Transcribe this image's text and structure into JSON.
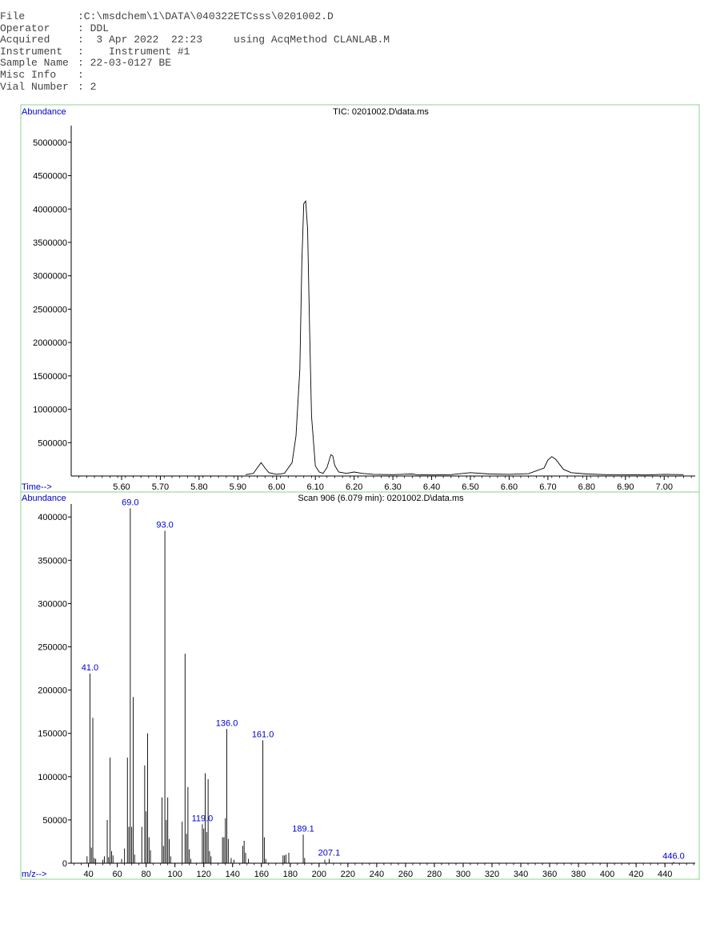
{
  "header": {
    "rows": [
      {
        "key": "File",
        "value": ":C:\\msdchem\\1\\DATA\\040322ETCsss\\0201002.D"
      },
      {
        "key": "Operator",
        "value": ": DDL"
      },
      {
        "key": "Acquired",
        "value": ":  3 Apr 2022  22:23     using AcqMethod CLANLAB.M"
      },
      {
        "key": "Instrument",
        "value": ":    Instrument #1"
      },
      {
        "key": "Sample Name",
        "value": ": 22-03-0127 BE"
      },
      {
        "key": "Misc Info",
        "value": ":"
      },
      {
        "key": "Vial Number",
        "value": ": 2"
      }
    ]
  },
  "colors": {
    "frame": "#8fd18f",
    "labels": "#0000cc",
    "trace": "#000000",
    "spectrum": "#000000"
  },
  "chart_data": [
    {
      "type": "line",
      "title": "TIC: 0201002.D\\data.ms",
      "ylabel": "Abundance",
      "xlabel": "Time-->",
      "xlim": [
        5.47,
        7.08
      ],
      "ylim": [
        0,
        5250000
      ],
      "xticks": [
        "5.60",
        "5.70",
        "5.80",
        "5.90",
        "6.00",
        "6.10",
        "6.20",
        "6.30",
        "6.40",
        "6.50",
        "6.60",
        "6.70",
        "6.80",
        "6.90",
        "7.00"
      ],
      "yticks": [
        "500000",
        "1000000",
        "1500000",
        "2000000",
        "2500000",
        "3000000",
        "3500000",
        "4000000",
        "4500000",
        "5000000"
      ],
      "x": [
        5.92,
        5.94,
        5.95,
        5.96,
        5.97,
        5.98,
        6.0,
        6.02,
        6.04,
        6.05,
        6.06,
        6.065,
        6.07,
        6.075,
        6.08,
        6.085,
        6.09,
        6.1,
        6.11,
        6.12,
        6.13,
        6.14,
        6.145,
        6.15,
        6.16,
        6.18,
        6.2,
        6.22,
        6.25,
        6.3,
        6.35,
        6.36,
        6.4,
        6.45,
        6.5,
        6.55,
        6.6,
        6.65,
        6.69,
        6.7,
        6.71,
        6.72,
        6.74,
        6.76,
        6.8,
        6.85,
        6.9,
        6.95,
        7.0,
        7.05
      ],
      "y": [
        20000,
        40000,
        120000,
        200000,
        120000,
        50000,
        25000,
        40000,
        200000,
        600000,
        1600000,
        3200000,
        4080000,
        4120000,
        3700000,
        2200000,
        900000,
        150000,
        60000,
        40000,
        130000,
        320000,
        300000,
        160000,
        60000,
        40000,
        60000,
        40000,
        25000,
        20000,
        30000,
        20000,
        15000,
        20000,
        50000,
        30000,
        25000,
        35000,
        120000,
        240000,
        290000,
        250000,
        100000,
        50000,
        30000,
        20000,
        20000,
        15000,
        25000,
        20000
      ]
    },
    {
      "type": "bar",
      "title": "Scan 906 (6.079 min): 0201002.D\\data.ms",
      "ylabel": "Abundance",
      "xlabel": "m/z-->",
      "xlim": [
        28,
        461
      ],
      "ylim": [
        0,
        415000
      ],
      "xticks": [
        "40",
        "60",
        "80",
        "100",
        "120",
        "140",
        "160",
        "180",
        "200",
        "220",
        "240",
        "260",
        "280",
        "300",
        "320",
        "340",
        "360",
        "380",
        "400",
        "420",
        "440"
      ],
      "yticks": [
        "0",
        "50000",
        "100000",
        "150000",
        "200000",
        "250000",
        "300000",
        "350000",
        "400000"
      ],
      "peaks": [
        {
          "mz": 39,
          "a": 8000
        },
        {
          "mz": 41,
          "a": 219000
        },
        {
          "mz": 42,
          "a": 18000
        },
        {
          "mz": 43,
          "a": 168000
        },
        {
          "mz": 44,
          "a": 6000
        },
        {
          "mz": 45,
          "a": 5000
        },
        {
          "mz": 50,
          "a": 4000
        },
        {
          "mz": 51,
          "a": 8000
        },
        {
          "mz": 53,
          "a": 50000
        },
        {
          "mz": 54,
          "a": 7000
        },
        {
          "mz": 55,
          "a": 122000
        },
        {
          "mz": 56,
          "a": 14000
        },
        {
          "mz": 57,
          "a": 9000
        },
        {
          "mz": 63,
          "a": 5000
        },
        {
          "mz": 65,
          "a": 17000
        },
        {
          "mz": 67,
          "a": 122000
        },
        {
          "mz": 68,
          "a": 42000
        },
        {
          "mz": 69,
          "a": 410000
        },
        {
          "mz": 70,
          "a": 42000
        },
        {
          "mz": 71,
          "a": 192000
        },
        {
          "mz": 72,
          "a": 10000
        },
        {
          "mz": 77,
          "a": 42000
        },
        {
          "mz": 79,
          "a": 113000
        },
        {
          "mz": 80,
          "a": 60000
        },
        {
          "mz": 81,
          "a": 150000
        },
        {
          "mz": 82,
          "a": 30000
        },
        {
          "mz": 83,
          "a": 15000
        },
        {
          "mz": 91,
          "a": 76000
        },
        {
          "mz": 92,
          "a": 20000
        },
        {
          "mz": 93,
          "a": 384000
        },
        {
          "mz": 94,
          "a": 50000
        },
        {
          "mz": 95,
          "a": 76000
        },
        {
          "mz": 96,
          "a": 28000
        },
        {
          "mz": 97,
          "a": 8000
        },
        {
          "mz": 105,
          "a": 48000
        },
        {
          "mz": 107,
          "a": 242000
        },
        {
          "mz": 108,
          "a": 34000
        },
        {
          "mz": 109,
          "a": 88000
        },
        {
          "mz": 110,
          "a": 16000
        },
        {
          "mz": 111,
          "a": 5000
        },
        {
          "mz": 119,
          "a": 45000
        },
        {
          "mz": 120,
          "a": 40000
        },
        {
          "mz": 121,
          "a": 104000
        },
        {
          "mz": 122,
          "a": 36000
        },
        {
          "mz": 123,
          "a": 97000
        },
        {
          "mz": 124,
          "a": 14000
        },
        {
          "mz": 125,
          "a": 8000
        },
        {
          "mz": 133,
          "a": 30000
        },
        {
          "mz": 134,
          "a": 30000
        },
        {
          "mz": 135,
          "a": 52000
        },
        {
          "mz": 136,
          "a": 155000
        },
        {
          "mz": 137,
          "a": 28000
        },
        {
          "mz": 139,
          "a": 6000
        },
        {
          "mz": 141,
          "a": 4000
        },
        {
          "mz": 147,
          "a": 20000
        },
        {
          "mz": 148,
          "a": 26000
        },
        {
          "mz": 149,
          "a": 12000
        },
        {
          "mz": 151,
          "a": 5000
        },
        {
          "mz": 161,
          "a": 142000
        },
        {
          "mz": 162,
          "a": 30000
        },
        {
          "mz": 163,
          "a": 5000
        },
        {
          "mz": 175,
          "a": 9000
        },
        {
          "mz": 176,
          "a": 9000
        },
        {
          "mz": 177,
          "a": 10000
        },
        {
          "mz": 179,
          "a": 12000
        },
        {
          "mz": 189,
          "a": 33000
        },
        {
          "mz": 190,
          "a": 6000
        },
        {
          "mz": 204,
          "a": 4000
        },
        {
          "mz": 207,
          "a": 5000
        },
        {
          "mz": 446,
          "a": 1500
        }
      ],
      "annotations": [
        {
          "mz": 41,
          "a": 219000,
          "label": "41.0"
        },
        {
          "mz": 69,
          "a": 410000,
          "label": "69.0"
        },
        {
          "mz": 93,
          "a": 384000,
          "label": "93.0"
        },
        {
          "mz": 119,
          "a": 45000,
          "label": "119.0"
        },
        {
          "mz": 136,
          "a": 155000,
          "label": "136.0"
        },
        {
          "mz": 161,
          "a": 142000,
          "label": "161.0"
        },
        {
          "mz": 189,
          "a": 33000,
          "label": "189.1"
        },
        {
          "mz": 207,
          "a": 5000,
          "label": "207.1"
        },
        {
          "mz": 446,
          "a": 1500,
          "label": "446.0"
        }
      ]
    }
  ]
}
